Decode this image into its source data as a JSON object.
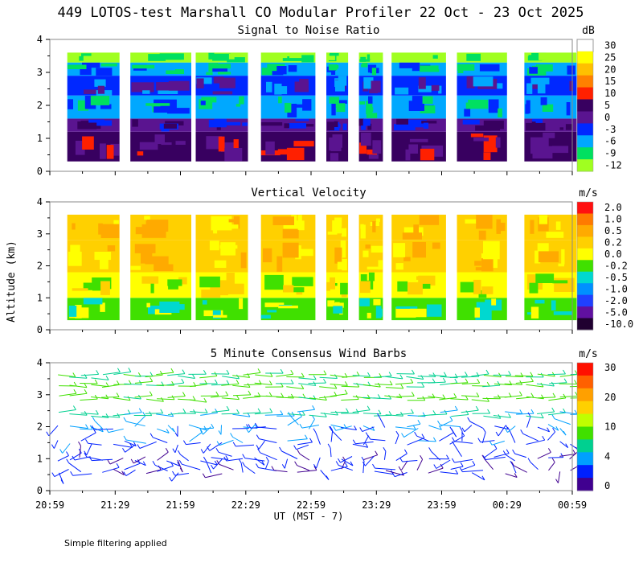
{
  "title": "449 LOTOS-test Marshall CO Modular Profiler 22 Oct - 23 Oct 2025",
  "ylabel": "Altitude (km)",
  "xlabel": "UT  (MST - 7)",
  "footnote": "Simple filtering applied",
  "chart_data": {
    "type": "heatmap",
    "x_ticks": [
      "20:59",
      "21:29",
      "21:59",
      "22:29",
      "22:59",
      "23:29",
      "23:59",
      "00:29",
      "00:59"
    ],
    "x_range_minutes": [
      0,
      240
    ],
    "data_blocks_minutes": [
      [
        8,
        32
      ],
      [
        37,
        65
      ],
      [
        67,
        91
      ],
      [
        97,
        122
      ],
      [
        127,
        137
      ],
      [
        142,
        153
      ],
      [
        157,
        182
      ],
      [
        187,
        210
      ],
      [
        218,
        242
      ]
    ],
    "y_range_km": [
      0,
      4
    ],
    "y_ticks": [
      "0",
      "1",
      "2",
      "3",
      "4"
    ],
    "panels": [
      {
        "title": "Signal to Noise Ratio",
        "unit": "dB",
        "colorbar": {
          "labels": [
            "30",
            "25",
            "20",
            "15",
            "10",
            "5",
            "0",
            "-3",
            "-6",
            "-9",
            "-12"
          ],
          "colors": [
            "#ffffff",
            "#ffff00",
            "#ffc000",
            "#ff8000",
            "#ff2000",
            "#380060",
            "#5a1490",
            "#0028ff",
            "#00a8ff",
            "#00e060",
            "#a0ff20"
          ]
        },
        "layers": [
          {
            "from_km": 0.3,
            "to_km": 1.2,
            "level": "5"
          },
          {
            "from_km": 1.2,
            "to_km": 1.6,
            "level": "0"
          },
          {
            "from_km": 1.6,
            "to_km": 2.3,
            "level": "-6"
          },
          {
            "from_km": 2.3,
            "to_km": 2.9,
            "level": "-3"
          },
          {
            "from_km": 2.9,
            "to_km": 3.3,
            "level": "-6"
          },
          {
            "from_km": 3.3,
            "to_km": 3.6,
            "level": "-12"
          }
        ]
      },
      {
        "title": "Vertical Velocity",
        "unit": "m/s",
        "colorbar": {
          "labels": [
            "2.0",
            "1.0",
            "0.5",
            "0.2",
            "0.0",
            "-0.2",
            "-0.5",
            "-1.0",
            "-2.0",
            "-5.0",
            "-10.0"
          ],
          "colors": [
            "#ff1010",
            "#ff7a00",
            "#ffaa00",
            "#ffd000",
            "#ffff00",
            "#40e000",
            "#00d8d0",
            "#0090ff",
            "#2040ff",
            "#6010a0",
            "#200030"
          ]
        },
        "layers": [
          {
            "from_km": 0.3,
            "to_km": 1.0,
            "level": "-0.2"
          },
          {
            "from_km": 1.0,
            "to_km": 1.8,
            "level": "0.0"
          },
          {
            "from_km": 1.8,
            "to_km": 2.8,
            "level": "0.2"
          },
          {
            "from_km": 2.8,
            "to_km": 3.6,
            "level": "0.2"
          }
        ]
      },
      {
        "title": "5 Minute Consensus Wind Barbs",
        "unit": "m/s",
        "colorbar": {
          "labels": [
            "30",
            "20",
            "10",
            "4",
            "0"
          ],
          "colors": [
            "#ff1000",
            "#ff6000",
            "#ffa000",
            "#ffd000",
            "#c0ff00",
            "#40e000",
            "#00d090",
            "#00a0ff",
            "#0020ff",
            "#400090"
          ]
        },
        "barbs": [
          {
            "height_km": 0.6,
            "speed_ms": 2
          },
          {
            "height_km": 1.0,
            "speed_ms": 3
          },
          {
            "height_km": 1.5,
            "speed_ms": 4
          },
          {
            "height_km": 2.0,
            "speed_ms": 6
          },
          {
            "height_km": 2.4,
            "speed_ms": 10
          },
          {
            "height_km": 2.9,
            "speed_ms": 14
          },
          {
            "height_km": 3.3,
            "speed_ms": 13
          },
          {
            "height_km": 3.6,
            "speed_ms": 12
          }
        ]
      }
    ]
  }
}
